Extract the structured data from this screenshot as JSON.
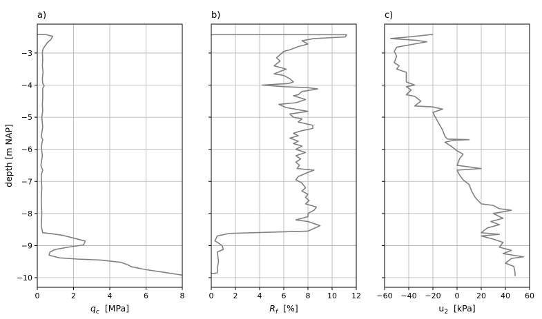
{
  "figure": {
    "ylabel": "depth [m  NAP]",
    "yticks": [
      -3,
      -4,
      -5,
      -6,
      -7,
      -8,
      -9,
      -10
    ],
    "ylim": [
      -10.3,
      -2.1
    ],
    "colors": {
      "series": "#808080",
      "grid": "#b0b0b0",
      "frame": "#000000"
    }
  },
  "chart_data": [
    {
      "type": "line",
      "panel_label": "a)",
      "xlabel_sym": "q",
      "xlabel_sub": "c",
      "xlabel_unit": "  [MPa]",
      "xlim": [
        0,
        8
      ],
      "xticks": [
        0,
        2,
        4,
        6,
        8
      ],
      "grid": true,
      "series": [
        {
          "points": [
            [
              0,
              -2.42
            ],
            [
              0.5,
              -2.43
            ],
            [
              0.85,
              -2.48
            ],
            [
              0.75,
              -2.58
            ],
            [
              0.55,
              -2.68
            ],
            [
              0.4,
              -2.8
            ],
            [
              0.3,
              -2.9
            ],
            [
              0.28,
              -3.0
            ],
            [
              0.3,
              -3.2
            ],
            [
              0.28,
              -3.4
            ],
            [
              0.32,
              -3.6
            ],
            [
              0.28,
              -3.8
            ],
            [
              0.3,
              -3.95
            ],
            [
              0.38,
              -4.02
            ],
            [
              0.3,
              -4.1
            ],
            [
              0.3,
              -4.4
            ],
            [
              0.28,
              -4.6
            ],
            [
              0.3,
              -4.8
            ],
            [
              0.25,
              -5.0
            ],
            [
              0.3,
              -5.3
            ],
            [
              0.22,
              -5.6
            ],
            [
              0.3,
              -5.7
            ],
            [
              0.22,
              -5.9
            ],
            [
              0.28,
              -6.2
            ],
            [
              0.2,
              -6.5
            ],
            [
              0.3,
              -6.65
            ],
            [
              0.22,
              -6.8
            ],
            [
              0.25,
              -7.2
            ],
            [
              0.22,
              -7.6
            ],
            [
              0.25,
              -8.0
            ],
            [
              0.22,
              -8.4
            ],
            [
              0.3,
              -8.6
            ],
            [
              0.8,
              -8.63
            ],
            [
              1.4,
              -8.68
            ],
            [
              2.1,
              -8.78
            ],
            [
              2.65,
              -8.86
            ],
            [
              2.55,
              -8.98
            ],
            [
              1.7,
              -9.05
            ],
            [
              1.0,
              -9.12
            ],
            [
              0.7,
              -9.2
            ],
            [
              0.65,
              -9.3
            ],
            [
              1.2,
              -9.38
            ],
            [
              2.2,
              -9.42
            ],
            [
              3.5,
              -9.45
            ],
            [
              4.6,
              -9.52
            ],
            [
              5.0,
              -9.6
            ],
            [
              5.2,
              -9.66
            ],
            [
              6.0,
              -9.75
            ],
            [
              7.2,
              -9.85
            ],
            [
              8.0,
              -9.92
            ]
          ]
        }
      ]
    },
    {
      "type": "line",
      "panel_label": "b)",
      "xlabel_sym": "R",
      "xlabel_sub": "f",
      "xlabel_unit": "  [%]",
      "xlim": [
        0,
        12
      ],
      "xticks": [
        0,
        2,
        4,
        6,
        8,
        10,
        12
      ],
      "grid": true,
      "series": [
        {
          "points": [
            [
              0,
              -2.43
            ],
            [
              11.2,
              -2.43
            ],
            [
              11.1,
              -2.5
            ],
            [
              8.5,
              -2.55
            ],
            [
              7.5,
              -2.62
            ],
            [
              8.0,
              -2.72
            ],
            [
              7.2,
              -2.8
            ],
            [
              6.5,
              -2.9
            ],
            [
              6.0,
              -2.95
            ],
            [
              5.7,
              -3.05
            ],
            [
              5.4,
              -3.15
            ],
            [
              5.7,
              -3.25
            ],
            [
              5.2,
              -3.4
            ],
            [
              6.2,
              -3.5
            ],
            [
              5.2,
              -3.65
            ],
            [
              6.0,
              -3.7
            ],
            [
              6.5,
              -3.8
            ],
            [
              6.8,
              -3.9
            ],
            [
              6.4,
              -3.95
            ],
            [
              4.2,
              -4.0
            ],
            [
              6.0,
              -4.05
            ],
            [
              8.0,
              -4.08
            ],
            [
              8.8,
              -4.12
            ],
            [
              7.5,
              -4.2
            ],
            [
              7.2,
              -4.3
            ],
            [
              6.8,
              -4.33
            ],
            [
              7.8,
              -4.45
            ],
            [
              7.0,
              -4.55
            ],
            [
              5.6,
              -4.6
            ],
            [
              6.2,
              -4.7
            ],
            [
              8.0,
              -4.82
            ],
            [
              6.5,
              -4.9
            ],
            [
              6.8,
              -5.0
            ],
            [
              7.5,
              -5.05
            ],
            [
              7.2,
              -5.15
            ],
            [
              8.4,
              -5.25
            ],
            [
              8.4,
              -5.35
            ],
            [
              7.5,
              -5.42
            ],
            [
              6.8,
              -5.5
            ],
            [
              7.2,
              -5.58
            ],
            [
              6.5,
              -5.65
            ],
            [
              7.2,
              -5.75
            ],
            [
              6.8,
              -5.82
            ],
            [
              7.5,
              -5.9
            ],
            [
              7.0,
              -6.0
            ],
            [
              7.8,
              -6.1
            ],
            [
              7.0,
              -6.2
            ],
            [
              7.4,
              -6.3
            ],
            [
              7.0,
              -6.4
            ],
            [
              7.3,
              -6.5
            ],
            [
              7.1,
              -6.6
            ],
            [
              8.5,
              -6.65
            ],
            [
              7.8,
              -6.75
            ],
            [
              7.2,
              -6.85
            ],
            [
              7.0,
              -6.95
            ],
            [
              7.5,
              -7.05
            ],
            [
              7.8,
              -7.2
            ],
            [
              7.5,
              -7.3
            ],
            [
              8.0,
              -7.4
            ],
            [
              7.8,
              -7.5
            ],
            [
              8.1,
              -7.6
            ],
            [
              7.8,
              -7.7
            ],
            [
              8.7,
              -7.8
            ],
            [
              8.5,
              -7.9
            ],
            [
              8.0,
              -8.0
            ],
            [
              8.0,
              -8.1
            ],
            [
              7.0,
              -8.2
            ],
            [
              8.0,
              -8.25
            ],
            [
              9.0,
              -8.38
            ],
            [
              8.6,
              -8.45
            ],
            [
              8.0,
              -8.55
            ],
            [
              1.5,
              -8.62
            ],
            [
              0.5,
              -8.7
            ],
            [
              0.3,
              -8.85
            ],
            [
              0.9,
              -9.0
            ],
            [
              1.0,
              -9.12
            ],
            [
              0.5,
              -9.2
            ],
            [
              0.55,
              -9.35
            ],
            [
              0.6,
              -9.5
            ],
            [
              0.5,
              -9.7
            ],
            [
              0.5,
              -9.85
            ],
            [
              0,
              -9.88
            ]
          ]
        }
      ]
    },
    {
      "type": "line",
      "panel_label": "c)",
      "xlabel_sym": "u",
      "xlabel_sub": "2",
      "xlabel_unit": "  [kPa]",
      "xlim": [
        -60,
        60
      ],
      "xticks": [
        -60,
        -40,
        -20,
        0,
        20,
        40,
        60
      ],
      "grid": true,
      "series": [
        {
          "points": [
            [
              -20,
              -2.42
            ],
            [
              -40,
              -2.5
            ],
            [
              -55,
              -2.55
            ],
            [
              -35,
              -2.6
            ],
            [
              -25,
              -2.65
            ],
            [
              -40,
              -2.75
            ],
            [
              -50,
              -2.82
            ],
            [
              -52,
              -2.95
            ],
            [
              -50,
              -3.1
            ],
            [
              -52,
              -3.3
            ],
            [
              -48,
              -3.4
            ],
            [
              -50,
              -3.5
            ],
            [
              -42,
              -3.6
            ],
            [
              -42,
              -3.9
            ],
            [
              -35,
              -4.0
            ],
            [
              -42,
              -4.05
            ],
            [
              -38,
              -4.15
            ],
            [
              -42,
              -4.3
            ],
            [
              -35,
              -4.35
            ],
            [
              -30,
              -4.5
            ],
            [
              -35,
              -4.65
            ],
            [
              -20,
              -4.68
            ],
            [
              -12,
              -4.75
            ],
            [
              -20,
              -4.85
            ],
            [
              -18,
              -5.0
            ],
            [
              -15,
              -5.2
            ],
            [
              -12,
              -5.4
            ],
            [
              -10,
              -5.6
            ],
            [
              -8,
              -5.68
            ],
            [
              10,
              -5.7
            ],
            [
              -3,
              -5.72
            ],
            [
              -10,
              -5.78
            ],
            [
              -5,
              -5.9
            ],
            [
              0,
              -6.05
            ],
            [
              5,
              -6.15
            ],
            [
              2,
              -6.3
            ],
            [
              0,
              -6.5
            ],
            [
              20,
              -6.6
            ],
            [
              0,
              -6.65
            ],
            [
              2,
              -6.8
            ],
            [
              5,
              -6.95
            ],
            [
              10,
              -7.1
            ],
            [
              12,
              -7.3
            ],
            [
              15,
              -7.5
            ],
            [
              20,
              -7.7
            ],
            [
              30,
              -7.75
            ],
            [
              35,
              -7.85
            ],
            [
              45,
              -7.9
            ],
            [
              30,
              -8.0
            ],
            [
              38,
              -8.15
            ],
            [
              28,
              -8.25
            ],
            [
              35,
              -8.35
            ],
            [
              25,
              -8.45
            ],
            [
              20,
              -8.6
            ],
            [
              35,
              -8.65
            ],
            [
              20,
              -8.7
            ],
            [
              30,
              -8.8
            ],
            [
              38,
              -8.9
            ],
            [
              35,
              -9.05
            ],
            [
              45,
              -9.15
            ],
            [
              38,
              -9.25
            ],
            [
              55,
              -9.35
            ],
            [
              45,
              -9.4
            ],
            [
              40,
              -9.55
            ],
            [
              47,
              -9.65
            ],
            [
              48,
              -9.85
            ],
            [
              48,
              -9.95
            ]
          ]
        }
      ]
    }
  ]
}
